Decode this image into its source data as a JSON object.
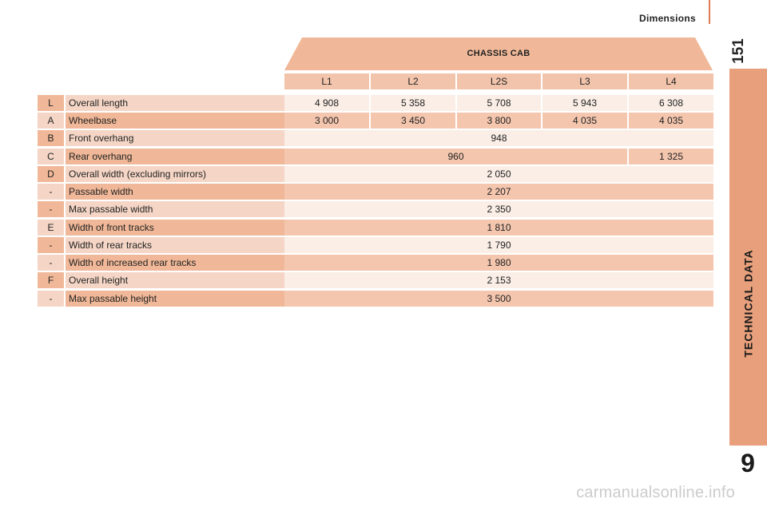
{
  "header": {
    "section_title": "Dimensions",
    "page_number": "151"
  },
  "side_tab": {
    "chapter_label": "TECHNICAL DATA",
    "chapter_number": "9"
  },
  "table": {
    "group_title": "CHASSIS CAB",
    "columns": [
      "L1",
      "L2",
      "L2S",
      "L3",
      "L4"
    ],
    "rows": [
      {
        "code": "L",
        "label": "Overall length",
        "values": [
          "4 908",
          "5 358",
          "5 708",
          "5 943",
          "6 308"
        ]
      },
      {
        "code": "A",
        "label": "Wheelbase",
        "values": [
          "3 000",
          "3 450",
          "3 800",
          "4 035",
          "4 035"
        ]
      },
      {
        "code": "B",
        "label": "Front overhang",
        "values": [
          "948"
        ]
      },
      {
        "code": "C",
        "label": "Rear overhang",
        "values": [
          "960",
          "1 325"
        ]
      },
      {
        "code": "D",
        "label": "Overall width (excluding mirrors)",
        "values": [
          "2 050"
        ]
      },
      {
        "code": "-",
        "label": "Passable width",
        "values": [
          "2 207"
        ]
      },
      {
        "code": "-",
        "label": "Max passable width",
        "values": [
          "2 350"
        ]
      },
      {
        "code": "E",
        "label": "Width of front tracks",
        "values": [
          "1 810"
        ]
      },
      {
        "code": "-",
        "label": "Width of rear tracks",
        "values": [
          "1 790"
        ]
      },
      {
        "code": "-",
        "label": "Width of increased rear tracks",
        "values": [
          "1 980"
        ]
      },
      {
        "code": "F",
        "label": "Overall height",
        "values": [
          "2 153"
        ]
      },
      {
        "code": "-",
        "label": "Max passable height",
        "values": [
          "3 500"
        ]
      }
    ]
  },
  "watermark": "carmanualsonline.info",
  "colors": {
    "accent": "#e8a07c",
    "header_fill": "#f0b898",
    "light_fill": "#f5d6c6"
  }
}
